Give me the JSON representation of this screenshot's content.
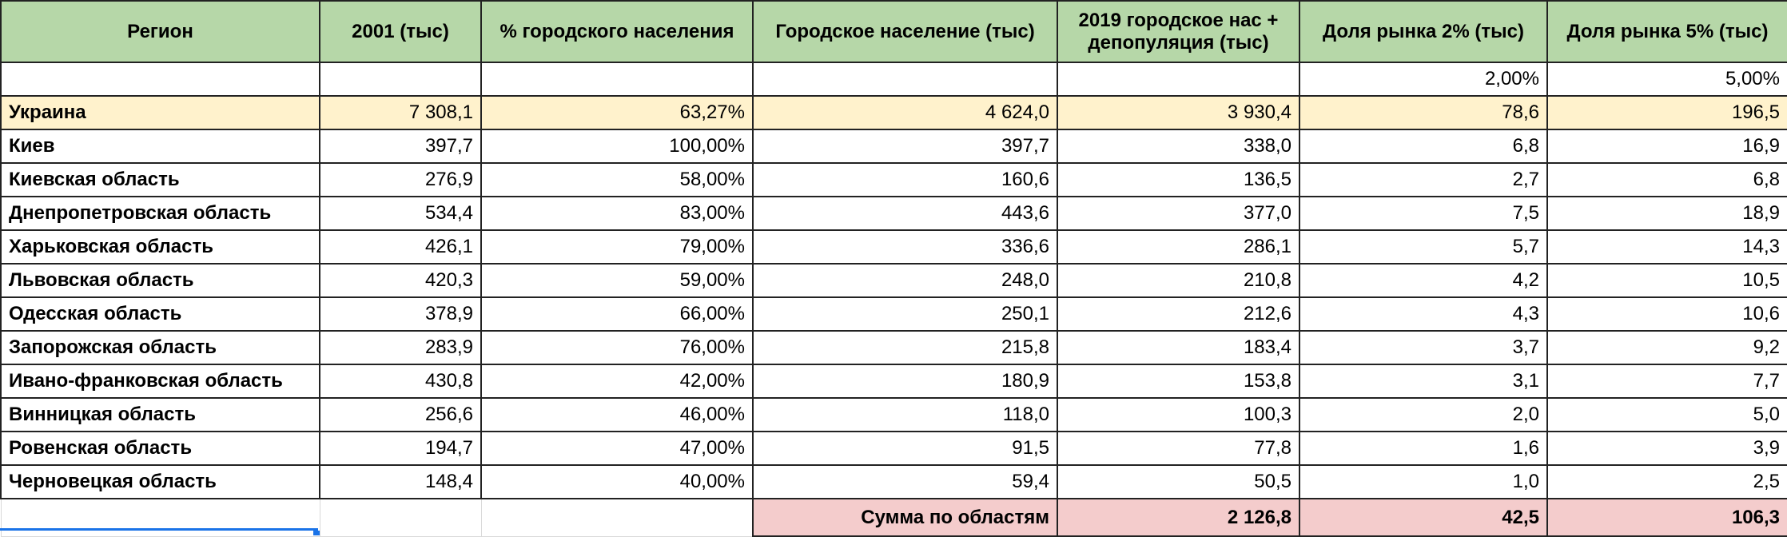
{
  "headers": {
    "region": "Регион",
    "pop2001": "2001 (тыс)",
    "urban_pct": "% городского населения",
    "urban_pop": "Городское население (тыс)",
    "urban_2019": "2019 городское нас + депопуляция (тыс)",
    "share2": "Доля рынка 2% (тыс)",
    "share5": "Доля рынка 5% (тыс)"
  },
  "rates": {
    "share2": "2,00%",
    "share5": "5,00%"
  },
  "total": {
    "region": "Украина",
    "pop2001": "7 308,1",
    "urban_pct": "63,27%",
    "urban_pop": "4 624,0",
    "urban_2019": "3 930,4",
    "share2": "78,6",
    "share5": "196,5"
  },
  "rows": [
    {
      "region": "Киев",
      "pop2001": "397,7",
      "urban_pct": "100,00%",
      "urban_pop": "397,7",
      "urban_2019": "338,0",
      "share2": "6,8",
      "share5": "16,9"
    },
    {
      "region": "Киевская область",
      "pop2001": "276,9",
      "urban_pct": "58,00%",
      "urban_pop": "160,6",
      "urban_2019": "136,5",
      "share2": "2,7",
      "share5": "6,8"
    },
    {
      "region": "Днепропетровская область",
      "pop2001": "534,4",
      "urban_pct": "83,00%",
      "urban_pop": "443,6",
      "urban_2019": "377,0",
      "share2": "7,5",
      "share5": "18,9"
    },
    {
      "region": "Харьковская область",
      "pop2001": "426,1",
      "urban_pct": "79,00%",
      "urban_pop": "336,6",
      "urban_2019": "286,1",
      "share2": "5,7",
      "share5": "14,3"
    },
    {
      "region": "Львовская область",
      "pop2001": "420,3",
      "urban_pct": "59,00%",
      "urban_pop": "248,0",
      "urban_2019": "210,8",
      "share2": "4,2",
      "share5": "10,5"
    },
    {
      "region": "Одесская область",
      "pop2001": "378,9",
      "urban_pct": "66,00%",
      "urban_pop": "250,1",
      "urban_2019": "212,6",
      "share2": "4,3",
      "share5": "10,6"
    },
    {
      "region": "Запорожская область",
      "pop2001": "283,9",
      "urban_pct": "76,00%",
      "urban_pop": "215,8",
      "urban_2019": "183,4",
      "share2": "3,7",
      "share5": "9,2"
    },
    {
      "region": "Ивано-франковская область",
      "pop2001": "430,8",
      "urban_pct": "42,00%",
      "urban_pop": "180,9",
      "urban_2019": "153,8",
      "share2": "3,1",
      "share5": "7,7"
    },
    {
      "region": "Винницкая область",
      "pop2001": "256,6",
      "urban_pct": "46,00%",
      "urban_pop": "118,0",
      "urban_2019": "100,3",
      "share2": "2,0",
      "share5": "5,0"
    },
    {
      "region": "Ровенская область",
      "pop2001": "194,7",
      "urban_pct": "47,00%",
      "urban_pop": "91,5",
      "urban_2019": "77,8",
      "share2": "1,6",
      "share5": "3,9"
    },
    {
      "region": "Черновецкая область",
      "pop2001": "148,4",
      "urban_pct": "40,00%",
      "urban_pop": "59,4",
      "urban_2019": "50,5",
      "share2": "1,0",
      "share5": "2,5"
    }
  ],
  "sum": {
    "label": "Сумма по областям",
    "urban_2019": "2 126,8",
    "share2": "42,5",
    "share5": "106,3"
  },
  "colors": {
    "header": "#b6d7a8",
    "total_row": "#fff2cc",
    "sum_row": "#f4cccc",
    "selection": "#1a73e8"
  }
}
